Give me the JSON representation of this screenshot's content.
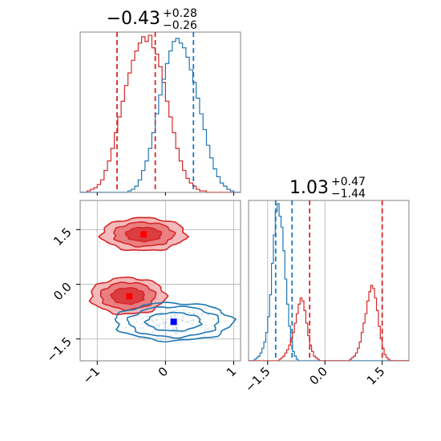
{
  "chart_data": [
    {
      "type": "histogram",
      "panel": "top-left",
      "title": {
        "value": "−0.43",
        "upper": "+0.28",
        "lower": "−0.26"
      },
      "xlim": [
        -1.25,
        1.1
      ],
      "grid": true,
      "series": [
        {
          "name": "",
          "color": "#d62728",
          "bin_start": -1.25,
          "bin_width": 0.05,
          "counts": [
            0,
            0,
            1,
            2,
            3,
            5,
            8,
            14,
            20,
            28,
            38,
            48,
            58,
            68,
            76,
            84,
            90,
            95,
            99,
            96,
            100,
            92,
            88,
            80,
            70,
            58,
            48,
            38,
            28,
            20,
            14,
            9,
            6,
            4,
            2,
            1,
            1,
            0,
            0,
            0,
            0,
            0,
            0,
            0,
            0,
            0,
            0
          ],
          "quantiles": [
            -0.71,
            -0.15
          ]
        },
        {
          "name": "",
          "color": "#1f77b4",
          "bin_start": -1.25,
          "bin_width": 0.05,
          "counts": [
            0,
            0,
            0,
            0,
            0,
            0,
            0,
            0,
            0,
            0,
            0,
            0,
            0,
            0,
            1,
            2,
            4,
            8,
            14,
            20,
            28,
            38,
            50,
            62,
            72,
            82,
            90,
            96,
            98,
            95,
            92,
            86,
            78,
            70,
            60,
            50,
            40,
            30,
            22,
            15,
            10,
            6,
            4,
            2,
            1,
            0,
            0
          ],
          "quantiles": [
            0.41
          ]
        }
      ]
    },
    {
      "type": "contour",
      "panel": "bottom-left",
      "xlim": [
        -1.25,
        1.1
      ],
      "ylim": [
        -2.1,
        2.3
      ],
      "xticks": [
        "−1",
        "0",
        "1"
      ],
      "xtick_values": [
        -1,
        0,
        1
      ],
      "yticks": [
        "1.5",
        "0.0",
        "−1.5"
      ],
      "ytick_values": [
        1.5,
        0.0,
        -1.5
      ],
      "grid": true,
      "series": [
        {
          "name": "",
          "color": "#d62728",
          "fill": "#f0a3a5",
          "mode": {
            "x": -0.32,
            "y": 1.37
          },
          "ellipses": [
            {
              "rx": 0.62,
              "ry": 0.45
            },
            {
              "rx": 0.44,
              "ry": 0.33
            },
            {
              "rx": 0.26,
              "ry": 0.19
            }
          ]
        },
        {
          "name": "",
          "color": "#d62728",
          "fill": "#f0a3a5",
          "mode": {
            "x": -0.55,
            "y": -0.32
          },
          "ellipses": [
            {
              "rx": 0.55,
              "ry": 0.5
            },
            {
              "rx": 0.4,
              "ry": 0.37
            },
            {
              "rx": 0.24,
              "ry": 0.22
            }
          ]
        },
        {
          "name": "",
          "color": "#1f77b4",
          "fill": "none",
          "mode": {
            "x": 0.12,
            "y": -1.03
          },
          "ellipses": [
            {
              "rx": 0.86,
              "ry": 0.52
            },
            {
              "rx": 0.66,
              "ry": 0.42
            },
            {
              "rx": 0.4,
              "ry": 0.25
            }
          ]
        }
      ],
      "markers": [
        {
          "x": -0.32,
          "y": 1.37,
          "color": "#ff0000"
        },
        {
          "x": -0.53,
          "y": -0.33,
          "color": "#ff0000"
        },
        {
          "x": 0.12,
          "y": -1.03,
          "color": "#0000ff"
        }
      ]
    },
    {
      "type": "histogram",
      "panel": "bottom-right",
      "title": {
        "value": "1.03",
        "upper": "+0.47",
        "lower": "−1.44"
      },
      "xlim": [
        -2.0,
        2.2
      ],
      "xticks": [
        "−1.5",
        "0.0",
        "1.5"
      ],
      "xtick_values": [
        -1.5,
        0.0,
        1.5
      ],
      "grid": true,
      "series": [
        {
          "name": "",
          "color": "#1f77b4",
          "bin_start": -2.0,
          "bin_width": 0.05,
          "counts": [
            0,
            0,
            0,
            1,
            2,
            3,
            5,
            8,
            12,
            18,
            28,
            42,
            62,
            80,
            95,
            100,
            92,
            85,
            70,
            52,
            36,
            22,
            12,
            6,
            3,
            1,
            0,
            0,
            0,
            0,
            0,
            0,
            0,
            0,
            0,
            0,
            0,
            0,
            0,
            0,
            0,
            0,
            0,
            0,
            0,
            0,
            0,
            0,
            0,
            0,
            0,
            0,
            0,
            0,
            0,
            0,
            0,
            0,
            0,
            0,
            0,
            0,
            0,
            0,
            0,
            0,
            0,
            0,
            0,
            0,
            0,
            0,
            0,
            0,
            0,
            0,
            0,
            0,
            0,
            0,
            0,
            0,
            0,
            0
          ],
          "quantiles": [
            -1.29,
            -0.86
          ]
        },
        {
          "name": "",
          "color": "#d62728",
          "bin_start": -2.0,
          "bin_width": 0.05,
          "counts": [
            0,
            0,
            0,
            0,
            0,
            0,
            0,
            0,
            0,
            0,
            0,
            0,
            0,
            0,
            0,
            0,
            1,
            2,
            3,
            5,
            7,
            10,
            14,
            18,
            24,
            30,
            36,
            40,
            38,
            32,
            24,
            16,
            10,
            6,
            3,
            2,
            1,
            0,
            0,
            0,
            0,
            0,
            0,
            0,
            0,
            0,
            0,
            0,
            0,
            0,
            0,
            0,
            0,
            1,
            2,
            3,
            5,
            8,
            12,
            18,
            24,
            30,
            38,
            44,
            48,
            46,
            40,
            32,
            22,
            14,
            8,
            4,
            2,
            1,
            0,
            0,
            0,
            0,
            0,
            0,
            0,
            0,
            0,
            0
          ],
          "quantiles": [
            -0.4,
            1.5
          ]
        }
      ]
    }
  ]
}
